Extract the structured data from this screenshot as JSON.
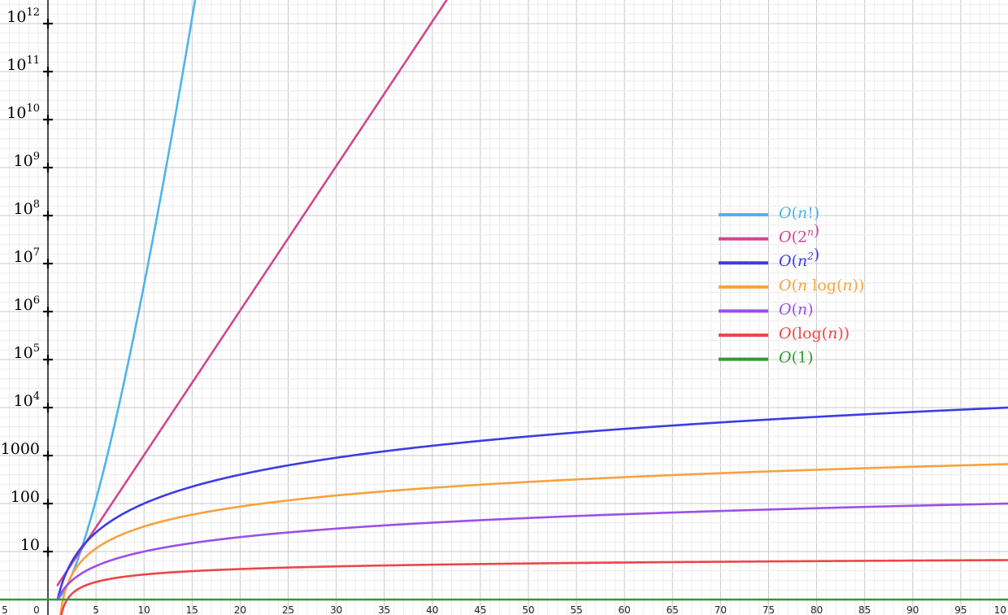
{
  "chart_data": {
    "type": "line",
    "title": "",
    "xlabel": "",
    "ylabel": "",
    "x_scale": "linear",
    "y_scale": "log",
    "xlim": [
      -5,
      100
    ],
    "ylim": [
      1,
      1000000000000
    ],
    "grid": true,
    "legend_position": "center-right",
    "x_tick_labels": [
      "5",
      "0",
      "5",
      "10",
      "15",
      "20",
      "25",
      "30",
      "35",
      "40",
      "45",
      "50",
      "55",
      "60",
      "65",
      "70",
      "75",
      "80",
      "85",
      "90",
      "95",
      "10"
    ],
    "y_tick_labels": [
      {
        "base": "10",
        "exp": ""
      },
      {
        "base": "100",
        "exp": ""
      },
      {
        "base": "1000",
        "exp": ""
      },
      {
        "base": "10",
        "exp": "4"
      },
      {
        "base": "10",
        "exp": "5"
      },
      {
        "base": "10",
        "exp": "6"
      },
      {
        "base": "10",
        "exp": "7"
      },
      {
        "base": "10",
        "exp": "8"
      },
      {
        "base": "10",
        "exp": "9"
      },
      {
        "base": "10",
        "exp": "10"
      },
      {
        "base": "10",
        "exp": "11"
      },
      {
        "base": "10",
        "exp": "12"
      }
    ],
    "series": [
      {
        "name": "O(n!)",
        "func": "factorial",
        "color": "#4fb4ea"
      },
      {
        "name": "O(2^n)",
        "func": "exp2",
        "color": "#d2468f"
      },
      {
        "name": "O(n^2)",
        "func": "square",
        "color": "#3c3ce6"
      },
      {
        "name": "O(n log(n))",
        "func": "nlogn",
        "color": "#f7a23e"
      },
      {
        "name": "O(n)",
        "func": "linear",
        "color": "#9b4fe8"
      },
      {
        "name": "O(log(n))",
        "func": "log",
        "color": "#ec4648"
      },
      {
        "name": "O(1)",
        "func": "constant",
        "color": "#2f9a2f"
      }
    ]
  }
}
